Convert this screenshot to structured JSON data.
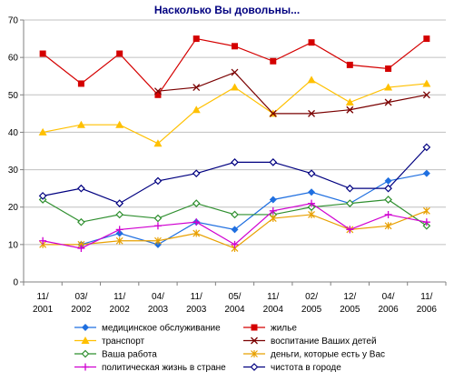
{
  "chart_data": {
    "type": "line",
    "title": "Насколько Вы довольны...",
    "xlabel": "",
    "ylabel": "",
    "categories": [
      [
        "11/",
        "2001"
      ],
      [
        "03/",
        "2002"
      ],
      [
        "11/",
        "2002"
      ],
      [
        "04/",
        "2003"
      ],
      [
        "11/",
        "2003"
      ],
      [
        "05/",
        "2004"
      ],
      [
        "11/",
        "2004"
      ],
      [
        "02/",
        "2005"
      ],
      [
        "12/",
        "2005"
      ],
      [
        "04/",
        "2006"
      ],
      [
        "11/",
        "2006"
      ]
    ],
    "ylim": [
      0,
      70
    ],
    "yticks": [
      0,
      10,
      20,
      30,
      40,
      50,
      60,
      70
    ],
    "grid": "horizontal",
    "legend_position": "bottom",
    "series": [
      {
        "name": "медицинское обслуживание",
        "color": "#1f6fe0",
        "marker": "diamond-filled",
        "values": [
          null,
          10,
          13,
          10,
          16,
          14,
          22,
          24,
          21,
          27,
          29
        ]
      },
      {
        "name": "жилье",
        "color": "#d40000",
        "marker": "square-filled",
        "values": [
          61,
          53,
          61,
          50,
          65,
          63,
          59,
          64,
          58,
          57,
          65
        ]
      },
      {
        "name": "транспорт",
        "color": "#ffc000",
        "marker": "triangle-filled",
        "values": [
          40,
          42,
          42,
          37,
          46,
          52,
          45,
          54,
          48,
          52,
          53
        ]
      },
      {
        "name": "воспитание Ваших детей",
        "color": "#7a0000",
        "marker": "x",
        "values": [
          null,
          null,
          null,
          51,
          52,
          56,
          45,
          45,
          46,
          48,
          50
        ]
      },
      {
        "name": "Ваша работа",
        "color": "#2f8f2f",
        "marker": "diamond-open",
        "values": [
          22,
          16,
          18,
          17,
          21,
          18,
          18,
          20,
          21,
          22,
          15
        ]
      },
      {
        "name": "деньги, которые есть у Вас",
        "color": "#e8a000",
        "marker": "asterisk",
        "values": [
          10,
          10,
          11,
          11,
          13,
          9,
          17,
          18,
          14,
          15,
          19
        ]
      },
      {
        "name": "политическая жизнь в стране",
        "color": "#d000d0",
        "marker": "plus",
        "values": [
          11,
          9,
          14,
          15,
          16,
          10,
          19,
          21,
          14,
          18,
          16
        ]
      },
      {
        "name": "чистота в городе",
        "color": "#000080",
        "marker": "diamond-open",
        "values": [
          23,
          25,
          21,
          27,
          29,
          32,
          32,
          29,
          25,
          25,
          36
        ]
      }
    ]
  }
}
